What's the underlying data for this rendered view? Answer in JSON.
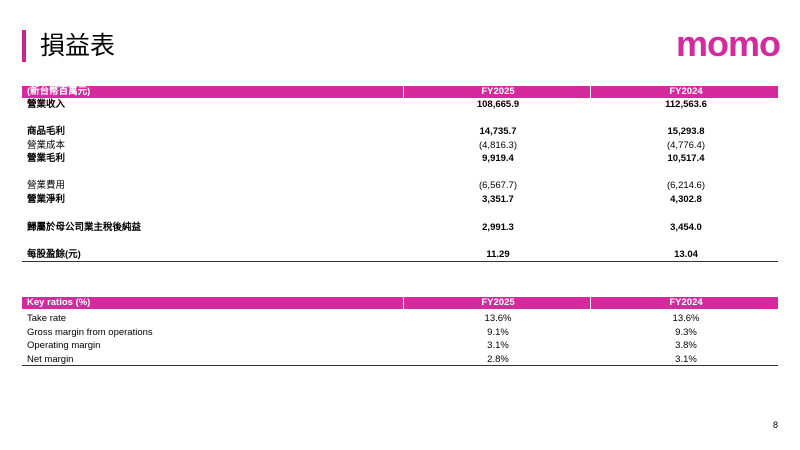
{
  "header": {
    "title": "損益表",
    "logo": "momo"
  },
  "income_table": {
    "columns": [
      "(新台幣百萬元)",
      "FY2025",
      "FY2024"
    ],
    "rows": [
      [
        "營業收入",
        "108,665.9",
        "112,563.6"
      ],
      [
        "商品毛利",
        "14,735.7",
        "15,293.8"
      ],
      [
        "營業成本",
        "(4,816.3)",
        "(4,776.4)"
      ],
      [
        "營業毛利",
        "9,919.4",
        "10,517.4"
      ],
      [
        "營業費用",
        "(6,567.7)",
        "(6,214.6)"
      ],
      [
        "營業淨利",
        "3,351.7",
        "4,302.8"
      ],
      [
        "歸屬於母公司業主稅後純益",
        "2,991.3",
        "3,454.0"
      ],
      [
        "每股盈餘(元)",
        "11.29",
        "13.04"
      ]
    ]
  },
  "ratio_table": {
    "columns": [
      "Key ratios (%)",
      "FY2025",
      "FY2024"
    ],
    "rows": [
      [
        "Take rate",
        "13.6%",
        "13.6%"
      ],
      [
        "Gross margin from operations",
        "9.1%",
        "9.3%"
      ],
      [
        "Operating margin",
        "3.1%",
        "3.8%"
      ],
      [
        "Net margin",
        "2.8%",
        "3.1%"
      ]
    ]
  },
  "page_number": "8"
}
